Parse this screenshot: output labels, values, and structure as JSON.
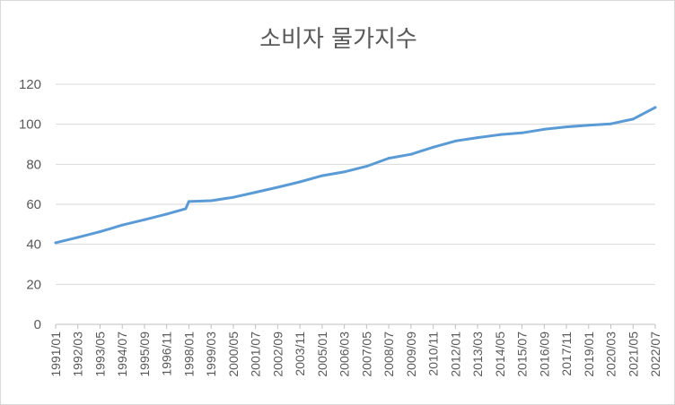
{
  "chart_data": {
    "type": "line",
    "title": "소비자 물가지수",
    "xlabel": "",
    "ylabel": "",
    "ylim": [
      0,
      120
    ],
    "yticks": [
      0,
      20,
      40,
      60,
      80,
      100,
      120
    ],
    "grid": true,
    "legend": "none",
    "line_color": "#5b9bd5",
    "x_tick_labels": [
      "1991/01",
      "1992/03",
      "1993/05",
      "1994/07",
      "1995/09",
      "1996/11",
      "1998/01",
      "1999/03",
      "2000/05",
      "2001/07",
      "2002/09",
      "2003/11",
      "2005/01",
      "2006/03",
      "2007/05",
      "2008/07",
      "2009/09",
      "2010/11",
      "2012/01",
      "2013/03",
      "2014/05",
      "2015/07",
      "2016/09",
      "2017/11",
      "2019/01",
      "2020/03",
      "2021/05",
      "2022/07"
    ],
    "series": [
      {
        "x": [
          "1991/01",
          "1992/03",
          "1993/05",
          "1994/07",
          "1995/09",
          "1996/11",
          "1997/11",
          "1998/01",
          "1999/03",
          "2000/05",
          "2001/07",
          "2002/09",
          "2003/11",
          "2005/01",
          "2006/03",
          "2007/05",
          "2008/07",
          "2009/09",
          "2010/11",
          "2012/01",
          "2013/03",
          "2014/05",
          "2015/07",
          "2016/09",
          "2017/11",
          "2019/01",
          "2020/03",
          "2021/05",
          "2022/07"
        ],
        "values": [
          40.8,
          43.5,
          46.3,
          49.6,
          52.3,
          55.1,
          57.8,
          61.4,
          61.8,
          63.5,
          66.0,
          68.5,
          71.2,
          74.3,
          76.2,
          79.0,
          83.0,
          85.0,
          88.5,
          91.6,
          93.3,
          94.8,
          95.7,
          97.5,
          98.7,
          99.5,
          100.2,
          102.6,
          108.4
        ]
      }
    ]
  }
}
